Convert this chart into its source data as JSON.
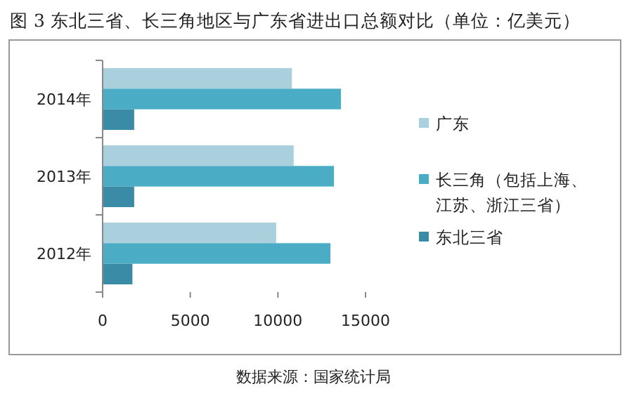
{
  "chart_data": {
    "type": "bar",
    "orientation": "horizontal",
    "title": "图 3 东北三省、长三角地区与广东省进出口总额对比（单位：亿美元）",
    "annotations": [
      "数据来源：国家统计局"
    ],
    "categories": [
      "2014年",
      "2013年",
      "2012年"
    ],
    "series": [
      {
        "name": "广东",
        "color": "#a9d0dc",
        "values": [
          10800,
          10900,
          9900
        ]
      },
      {
        "name": "长三角（包括上海、江苏、浙江三省）",
        "color": "#4bacc6",
        "values": [
          13600,
          13200,
          13000
        ]
      },
      {
        "name": "东北三省",
        "color": "#3a8ca6",
        "values": [
          1800,
          1800,
          1700
        ]
      }
    ],
    "xlim": [
      0,
      15000
    ],
    "xticks": [
      0,
      5000,
      10000,
      15000
    ],
    "grid": false,
    "legend": "right"
  }
}
